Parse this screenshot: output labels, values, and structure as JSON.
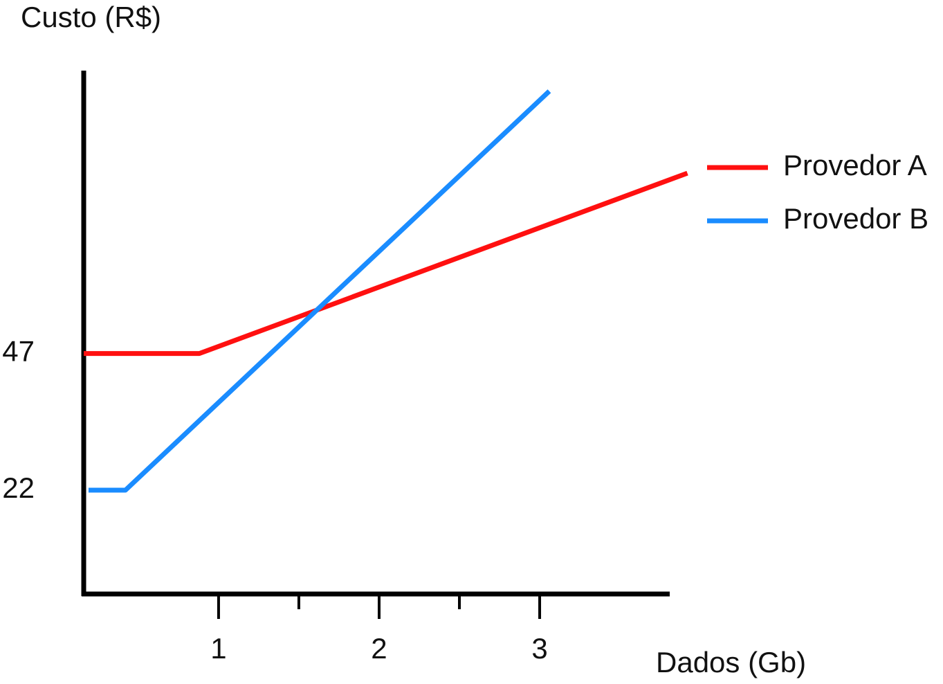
{
  "chart_data": {
    "type": "line",
    "y_label": "Custo (R$)",
    "x_label": "Dados (Gb)",
    "xlim": [
      0.16,
      3.81
    ],
    "xticks": [
      1,
      2,
      3
    ],
    "xminor_ticks": [
      1.5,
      2.5
    ],
    "ylim": [
      3,
      98
    ],
    "yticks": [
      22,
      47
    ],
    "series": [
      {
        "name": "Provedor A",
        "color": "#ff1010",
        "x": [
          0.16,
          0.88,
          3.92
        ],
        "values": [
          47,
          47,
          80
        ]
      },
      {
        "name": "Provedor B",
        "color": "#1a8cff",
        "x": [
          0.19,
          0.42,
          3.06
        ],
        "values": [
          22,
          22,
          95
        ]
      }
    ]
  }
}
